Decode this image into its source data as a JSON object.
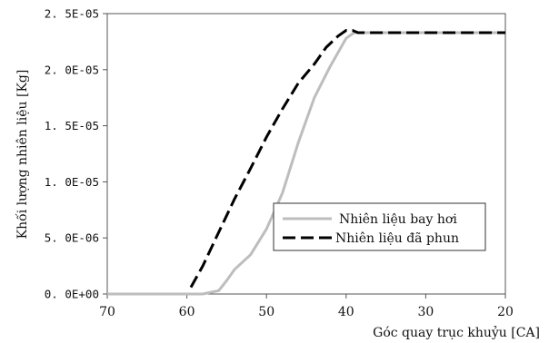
{
  "chart_data": {
    "type": "line",
    "title": "",
    "xlabel": "Góc quay trục khuỷu  [CA]",
    "ylabel": "Khối lượng nhiên liệu [Kg]",
    "xlim": [
      70,
      20
    ],
    "ylim": [
      0,
      2.5e-05
    ],
    "x_ticks": [
      70,
      60,
      50,
      40,
      30,
      20
    ],
    "x_tick_labels": [
      "70",
      "60",
      "50",
      "40",
      "30",
      "20"
    ],
    "y_ticks": [
      0,
      5e-06,
      1e-05,
      1.5e-05,
      2e-05,
      2.5e-05
    ],
    "y_tick_labels": [
      "0. 0E+00",
      "5. 0E-06",
      "1. 0E-05",
      "1. 5E-05",
      "2. 0E-05",
      "2. 5E-05"
    ],
    "grid": false,
    "legend_position": "lower-right",
    "series": [
      {
        "name": "Nhiên liệu bay hơi",
        "color": "#bdbdbd",
        "style": "solid",
        "x": [
          70,
          60,
          58,
          56,
          55,
          54,
          52,
          50,
          48,
          46,
          44,
          42,
          40,
          39,
          38,
          36,
          30,
          20
        ],
        "y": [
          0,
          0,
          0,
          3e-07,
          1.2e-06,
          2.2e-06,
          3.5e-06,
          5.8e-06,
          9e-06,
          1.35e-05,
          1.75e-05,
          2.03e-05,
          2.28e-05,
          2.33e-05,
          2.33e-05,
          2.33e-05,
          2.33e-05,
          2.33e-05
        ]
      },
      {
        "name": "Nhiên liệu đã phun",
        "color": "#000000",
        "style": "dashed",
        "x": [
          59.5,
          58,
          56,
          54,
          52,
          50,
          48,
          46,
          44,
          42.5,
          41,
          40,
          39.2,
          38.5,
          36,
          30,
          20
        ],
        "y": [
          6e-07,
          2.5e-06,
          5.5e-06,
          8.5e-06,
          1.12e-05,
          1.4e-05,
          1.65e-05,
          1.88e-05,
          2.05e-05,
          2.2e-05,
          2.3e-05,
          2.35e-05,
          2.35e-05,
          2.33e-05,
          2.33e-05,
          2.33e-05,
          2.33e-05
        ]
      }
    ]
  }
}
